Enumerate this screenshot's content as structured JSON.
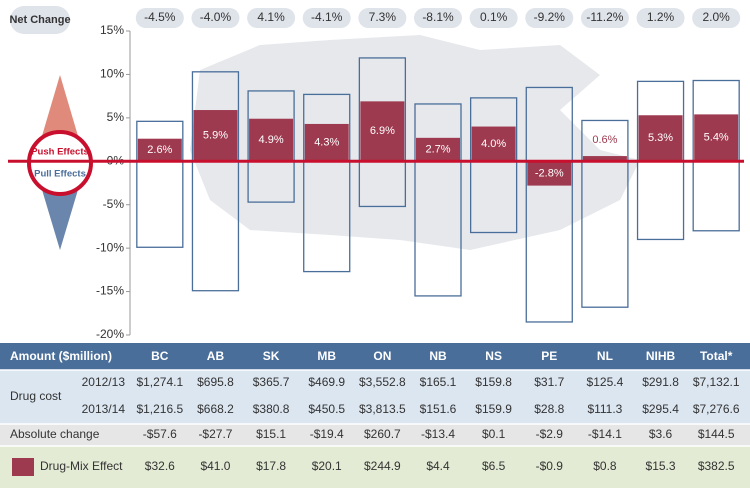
{
  "chart_data": {
    "type": "bar",
    "net_change_label": "Net Change",
    "categories": [
      "BC",
      "AB",
      "SK",
      "MB",
      "ON",
      "NB",
      "NS",
      "PE",
      "NL",
      "NIHB",
      "Total*"
    ],
    "series": [
      {
        "name": "Drug-Mix Effect",
        "color": "#9e3a4f",
        "values": [
          2.6,
          5.9,
          4.9,
          4.3,
          6.9,
          2.7,
          4.0,
          -2.8,
          0.6,
          5.3,
          5.4
        ],
        "value_labels": [
          "2.6%",
          "5.9%",
          "4.9%",
          "4.3%",
          "6.9%",
          "2.7%",
          "4.0%",
          "-2.8%",
          "0.6%",
          "5.3%",
          "5.4%"
        ]
      },
      {
        "name": "Push Effects",
        "color": "#4a6e9a",
        "values": [
          4.6,
          10.3,
          8.1,
          7.7,
          11.9,
          6.6,
          7.3,
          8.5,
          4.7,
          9.2,
          9.3
        ]
      },
      {
        "name": "Pull Effects",
        "color": "#4a6e9a",
        "values": [
          -9.9,
          -14.9,
          -4.7,
          -12.7,
          -5.2,
          -15.5,
          -8.2,
          -18.5,
          -16.8,
          -9.0,
          -8.0
        ]
      },
      {
        "name": "Net Change",
        "values": [
          -4.5,
          -4.0,
          4.1,
          -4.1,
          7.3,
          -8.1,
          0.1,
          -9.2,
          -11.2,
          1.2,
          2.0
        ],
        "value_labels": [
          "-4.5%",
          "-4.0%",
          "4.1%",
          "-4.1%",
          "7.3%",
          "-8.1%",
          "0.1%",
          "-9.2%",
          "-11.2%",
          "1.2%",
          "2.0%"
        ]
      }
    ],
    "ylim": [
      -20,
      15
    ],
    "yticks": [
      {
        "value": 15,
        "label": "15%"
      },
      {
        "value": 10,
        "label": "10%"
      },
      {
        "value": 5,
        "label": "5%"
      },
      {
        "value": 0,
        "label": "0%"
      },
      {
        "value": -5,
        "label": "-5%"
      },
      {
        "value": -10,
        "label": "-10%"
      },
      {
        "value": -15,
        "label": "-15%"
      },
      {
        "value": -20,
        "label": "-20%"
      }
    ]
  },
  "table": {
    "header": [
      "Amount ($million)",
      "BC",
      "AB",
      "SK",
      "MB",
      "ON",
      "NB",
      "NS",
      "PE",
      "NL",
      "NIHB",
      "Total*"
    ],
    "group_label": "Drug cost",
    "rows": [
      {
        "label": "2012/13",
        "cells": [
          "$1,274.1",
          "$695.8",
          "$365.7",
          "$469.9",
          "$3,552.8",
          "$165.1",
          "$159.8",
          "$31.7",
          "$125.4",
          "$291.8",
          "$7,132.1"
        ]
      },
      {
        "label": "2013/14",
        "cells": [
          "$1,216.5",
          "$668.2",
          "$380.8",
          "$450.5",
          "$3,813.5",
          "$151.6",
          "$159.9",
          "$28.8",
          "$111.3",
          "$295.4",
          "$7,276.6"
        ]
      },
      {
        "label": "Absolute change",
        "cells": [
          "-$57.6",
          "-$27.7",
          "$15.1",
          "-$19.4",
          "$260.7",
          "-$13.4",
          "$0.1",
          "-$2.9",
          "-$14.1",
          "$3.6",
          "$144.5"
        ]
      },
      {
        "cells": [
          "$32.6",
          "$41.0",
          "$17.8",
          "$20.1",
          "$244.9",
          "$4.4",
          "$6.5",
          "-$0.9",
          "$0.8",
          "$15.3",
          "$382.5"
        ]
      }
    ]
  }
}
